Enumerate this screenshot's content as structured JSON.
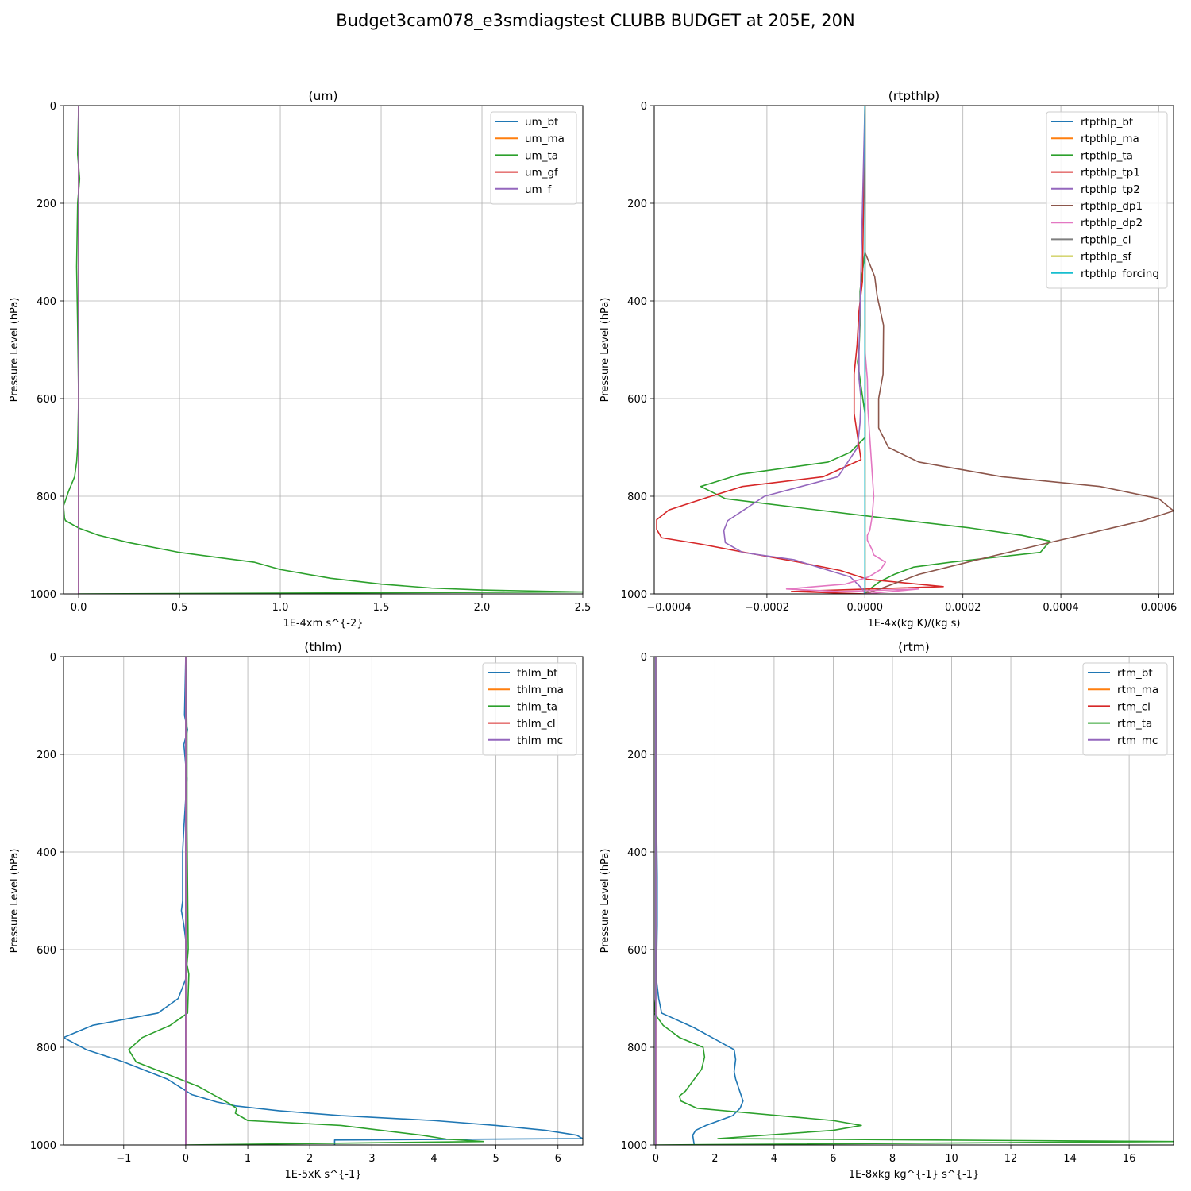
{
  "figure": {
    "title": "Budget3cam078_e3smdiagstest CLUBB BUDGET at 205E, 20N"
  },
  "chart_data": [
    {
      "type": "line",
      "title": "(um)",
      "xlabel": "1E-4xm s^{-2}",
      "ylabel": "Pressure Level (hPa)",
      "xlim": [
        -0.075,
        2.5
      ],
      "ylim": [
        1000,
        0
      ],
      "yinvert": true,
      "xticks": [
        0,
        0.5,
        1.0,
        1.5,
        2.0,
        2.5
      ],
      "xtick_labels": [
        "0.0",
        "0.5",
        "1.0",
        "1.5",
        "2.0",
        "2.5"
      ],
      "yticks": [
        0,
        200,
        400,
        600,
        800,
        1000
      ],
      "ytick_labels": [
        "0",
        "200",
        "400",
        "600",
        "800",
        "1000"
      ],
      "grid": true,
      "legend": "top-right",
      "series": [
        {
          "name": "um_bt",
          "color": "#1f77b4",
          "x": [
            0,
            0
          ],
          "y": [
            0,
            1000
          ]
        },
        {
          "name": "um_ma",
          "color": "#ff7f0e",
          "x": [
            0,
            0
          ],
          "y": [
            0,
            1000
          ]
        },
        {
          "name": "um_ta",
          "color": "#2ca02c",
          "x": [
            0,
            -0.005,
            0.005,
            -0.005,
            -0.01,
            -0.005,
            0,
            -0.005,
            -0.01,
            -0.02,
            -0.05,
            -0.075,
            -0.07,
            -0.065,
            0,
            0.1,
            0.25,
            0.5,
            0.87,
            1.0,
            1.25,
            1.5,
            1.75,
            2.0,
            2.5,
            0
          ],
          "y": [
            0,
            100,
            150,
            200,
            330,
            450,
            600,
            700,
            730,
            760,
            790,
            820,
            845,
            850,
            865,
            880,
            895,
            915,
            935,
            950,
            968,
            980,
            988,
            992,
            996,
            1000
          ]
        },
        {
          "name": "um_gf",
          "color": "#d62728",
          "x": [
            0,
            0
          ],
          "y": [
            0,
            1000
          ]
        },
        {
          "name": "um_f",
          "color": "#9467bd",
          "x": [
            0,
            0
          ],
          "y": [
            0,
            1000
          ]
        }
      ]
    },
    {
      "type": "line",
      "title": "(rtpthlp)",
      "xlabel": "1E-4x(kg K)/(kg s)",
      "ylabel": "Pressure Level (hPa)",
      "xlim": [
        -0.00043,
        0.00063
      ],
      "ylim": [
        1000,
        0
      ],
      "yinvert": true,
      "xticks": [
        -0.0004,
        -0.0002,
        0.0,
        0.0002,
        0.0004,
        0.0006
      ],
      "xtick_labels": [
        "−0.0004",
        "−0.0002",
        "0.0000",
        "0.0002",
        "0.0004",
        "0.0006"
      ],
      "yticks": [
        0,
        200,
        400,
        600,
        800,
        1000
      ],
      "ytick_labels": [
        "0",
        "200",
        "400",
        "600",
        "800",
        "1000"
      ],
      "grid": true,
      "legend": "top-right",
      "series": [
        {
          "name": "rtpthlp_bt",
          "color": "#1f77b4",
          "x": [
            0,
            0
          ],
          "y": [
            0,
            1000
          ]
        },
        {
          "name": "rtpthlp_ma",
          "color": "#ff7f0e",
          "x": [
            0,
            0
          ],
          "y": [
            0,
            1000
          ]
        },
        {
          "name": "rtpthlp_ta",
          "color": "#2ca02c",
          "x": [
            0,
            0,
            -1e-05,
            -1e-05,
            -1.2e-05,
            -1.5e-05,
            -1e-05,
            0,
            0,
            -3e-05,
            -7.5e-05,
            -0.000255,
            -0.000335,
            -0.000285,
            0,
            0.000215,
            0.00032,
            0.000378,
            0.000358,
            0.000175,
            0.0001,
            6e-05,
            3e-05,
            1e-05,
            0
          ],
          "y": [
            0,
            300,
            380,
            450,
            500,
            525,
            560,
            630,
            680,
            710,
            730,
            755,
            780,
            805,
            840,
            865,
            880,
            892,
            915,
            935,
            945,
            960,
            975,
            990,
            1000
          ]
        },
        {
          "name": "rtpthlp_tp1",
          "color": "#d62728",
          "x": [
            0,
            -5e-06,
            -1.2e-05,
            -1.6e-05,
            -2.2e-05,
            -2.2e-05,
            -8e-06,
            -8.5e-05,
            -0.00025,
            -0.00033,
            -0.0004,
            -0.000425,
            -0.000425,
            -0.000415,
            -0.000335,
            -0.000245,
            -0.000135,
            -5e-05,
            5e-06,
            0.00016,
            -0.00015,
            0
          ],
          "y": [
            0,
            360,
            420,
            490,
            550,
            630,
            725,
            760,
            780,
            805,
            828,
            848,
            868,
            885,
            898,
            915,
            935,
            952,
            970,
            985,
            995,
            1000
          ]
        },
        {
          "name": "rtpthlp_tp2",
          "color": "#9467bd",
          "x": [
            0,
            -1.2e-05,
            -1.2e-05,
            -8e-06,
            -1e-05,
            -1.5e-05,
            -5.5e-05,
            -0.00013,
            -0.000205,
            -0.00025,
            -0.00028,
            -0.000288,
            -0.000285,
            -0.00025,
            -0.000145,
            -8e-05,
            -3e-05,
            -5e-06,
            0
          ],
          "y": [
            0,
            500,
            560,
            600,
            650,
            700,
            760,
            780,
            800,
            830,
            850,
            870,
            895,
            915,
            930,
            950,
            965,
            990,
            1000
          ]
        },
        {
          "name": "rtpthlp_dp1",
          "color": "#8c564b",
          "x": [
            0,
            0,
            2e-05,
            2.5e-05,
            3.8e-05,
            3.7e-05,
            2.8e-05,
            2.8e-05,
            4.8e-05,
            0.00011,
            0.00028,
            0.00048,
            0.0006,
            0.00063,
            0.000568,
            0.000355,
            0.00023,
            0.00011,
            3e-05,
            0
          ],
          "y": [
            0,
            300,
            350,
            390,
            450,
            550,
            600,
            660,
            700,
            730,
            760,
            780,
            805,
            830,
            850,
            900,
            930,
            960,
            990,
            1000
          ]
        },
        {
          "name": "rtpthlp_dp2",
          "color": "#e377c2",
          "x": [
            0,
            0,
            5e-06,
            6e-06,
            1.8e-05,
            1.5e-05,
            1e-05,
            5e-06,
            5e-06,
            1e-05,
            1.5e-05,
            1.8e-05,
            4.2e-05,
            3.2e-05,
            8e-06,
            -4e-05,
            -0.00016,
            -5e-05,
            0.00011,
            0
          ],
          "y": [
            0,
            500,
            560,
            620,
            800,
            840,
            870,
            880,
            890,
            900,
            910,
            920,
            935,
            950,
            965,
            980,
            990,
            995,
            990,
            1000
          ]
        },
        {
          "name": "rtpthlp_cl",
          "color": "#7f7f7f",
          "x": [
            0,
            0
          ],
          "y": [
            0,
            1000
          ]
        },
        {
          "name": "rtpthlp_sf",
          "color": "#bcbd22",
          "x": [
            0,
            0
          ],
          "y": [
            0,
            1000
          ]
        },
        {
          "name": "rtpthlp_forcing",
          "color": "#17becf",
          "x": [
            0,
            0
          ],
          "y": [
            0,
            1000
          ]
        }
      ]
    },
    {
      "type": "line",
      "title": "(thlm)",
      "xlabel": "1E-5xK s^{-1}",
      "ylabel": "Pressure Level (hPa)",
      "xlim": [
        -1.97,
        6.4
      ],
      "ylim": [
        1000,
        0
      ],
      "yinvert": true,
      "xticks": [
        -1,
        0,
        1,
        2,
        3,
        4,
        5,
        6
      ],
      "xtick_labels": [
        "−1",
        "0",
        "1",
        "2",
        "3",
        "4",
        "5",
        "6"
      ],
      "yticks": [
        0,
        200,
        400,
        600,
        800,
        1000
      ],
      "ytick_labels": [
        "0",
        "200",
        "400",
        "600",
        "800",
        "1000"
      ],
      "grid": true,
      "legend": "top-right",
      "series": [
        {
          "name": "thlm_bt",
          "color": "#1f77b4",
          "x": [
            0,
            -0.02,
            0.03,
            -0.03,
            0.02,
            -0.03,
            -0.05,
            -0.05,
            -0.05,
            -0.07,
            -0.03,
            0.02,
            0,
            -0.12,
            -0.45,
            -1.5,
            -1.97,
            -1.6,
            -1.0,
            -0.3,
            0.1,
            0.5,
            0.8,
            1.5,
            2.5,
            4.0,
            5.0,
            5.8,
            6.3,
            6.4,
            2.4,
            2.4
          ],
          "y": [
            0,
            120,
            150,
            180,
            250,
            350,
            400,
            450,
            500,
            520,
            550,
            600,
            660,
            700,
            730,
            755,
            780,
            805,
            830,
            865,
            897,
            912,
            920,
            930,
            940,
            950,
            960,
            970,
            980,
            987,
            990,
            1000
          ]
        },
        {
          "name": "thlm_ma",
          "color": "#ff7f0e",
          "x": [
            0,
            0
          ],
          "y": [
            0,
            1000
          ]
        },
        {
          "name": "thlm_ta",
          "color": "#2ca02c",
          "x": [
            0,
            0.02,
            0.02,
            0.04,
            0.02,
            0.05,
            0.03,
            -0.25,
            -0.7,
            -0.92,
            -0.8,
            -0.5,
            0.2,
            0.7,
            0.82,
            0.8,
            1.0,
            2.5,
            3.8,
            4.2,
            4.8,
            0
          ],
          "y": [
            0,
            150,
            350,
            600,
            630,
            650,
            730,
            755,
            780,
            805,
            830,
            845,
            880,
            915,
            925,
            935,
            950,
            960,
            980,
            988,
            993,
            1000
          ]
        },
        {
          "name": "thlm_cl",
          "color": "#d62728",
          "x": [
            0,
            0
          ],
          "y": [
            0,
            1000
          ]
        },
        {
          "name": "thlm_mc",
          "color": "#9467bd",
          "x": [
            0,
            0
          ],
          "y": [
            0,
            1000
          ]
        }
      ]
    },
    {
      "type": "line",
      "title": "(rtm)",
      "xlabel": "1E-8xkg kg^{-1} s^{-1}",
      "ylabel": "Pressure Level (hPa)",
      "xlim": [
        -0.05,
        17.5
      ],
      "ylim": [
        1000,
        0
      ],
      "yinvert": true,
      "xticks": [
        0,
        2,
        4,
        6,
        8,
        10,
        12,
        14,
        16
      ],
      "xtick_labels": [
        "0",
        "2",
        "4",
        "6",
        "8",
        "10",
        "12",
        "14",
        "16"
      ],
      "yticks": [
        0,
        200,
        400,
        600,
        800,
        1000
      ],
      "ytick_labels": [
        "0",
        "200",
        "400",
        "600",
        "800",
        "1000"
      ],
      "grid": true,
      "legend": "top-right",
      "series": [
        {
          "name": "rtm_bt",
          "color": "#1f77b4",
          "x": [
            0,
            0.02,
            0.05,
            0.05,
            0.02,
            0.1,
            0.2,
            1.3,
            2.65,
            2.7,
            2.65,
            2.7,
            2.95,
            2.85,
            2.6,
            2.15,
            1.7,
            1.35,
            1.25,
            1.3
          ],
          "y": [
            0,
            300,
            450,
            550,
            660,
            700,
            730,
            760,
            805,
            825,
            850,
            865,
            910,
            925,
            940,
            950,
            960,
            970,
            980,
            1000
          ]
        },
        {
          "name": "rtm_ma",
          "color": "#ff7f0e",
          "x": [
            0,
            0
          ],
          "y": [
            0,
            1000
          ]
        },
        {
          "name": "rtm_cl",
          "color": "#d62728",
          "x": [
            0,
            0
          ],
          "y": [
            0,
            1000
          ]
        },
        {
          "name": "rtm_ta",
          "color": "#2ca02c",
          "x": [
            0,
            0,
            -0.05,
            0.25,
            0.8,
            1.6,
            1.65,
            1.55,
            1.0,
            0.8,
            0.85,
            1.4,
            6.0,
            6.95,
            6.0,
            2.1,
            17.5,
            0
          ],
          "y": [
            0,
            700,
            730,
            755,
            780,
            800,
            820,
            845,
            890,
            900,
            910,
            925,
            950,
            960,
            970,
            987,
            993,
            1000
          ]
        },
        {
          "name": "rtm_mc",
          "color": "#9467bd",
          "x": [
            0,
            0
          ],
          "y": [
            0,
            1000
          ]
        }
      ]
    }
  ]
}
